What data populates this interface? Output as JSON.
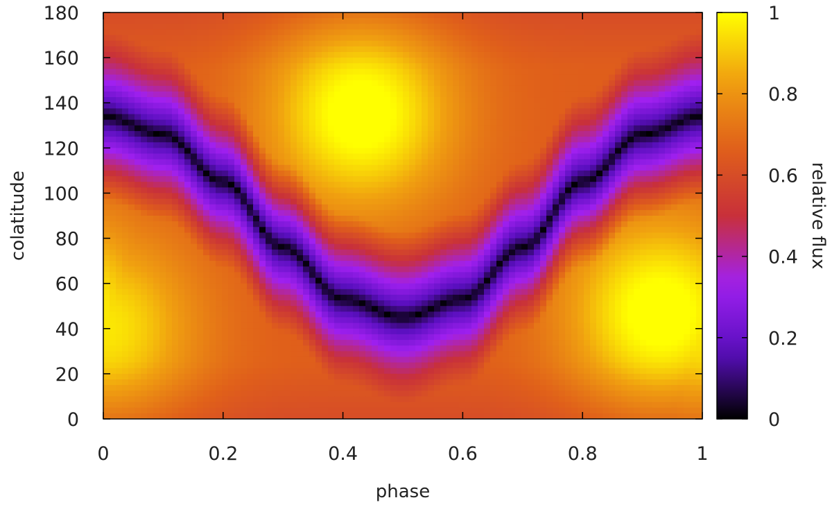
{
  "chart_data": {
    "type": "heatmap",
    "title": "",
    "xlabel": "phase",
    "ylabel": "colatitude",
    "colorbar_label": "relative flux",
    "xlim": [
      0,
      1
    ],
    "ylim": [
      0,
      180
    ],
    "clim": [
      0,
      1
    ],
    "x_ticks": [
      0,
      0.2,
      0.4,
      0.6,
      0.8,
      1
    ],
    "x_tick_labels": [
      "0",
      "0.2",
      "0.4",
      "0.6",
      "0.8",
      "1"
    ],
    "y_ticks": [
      0,
      20,
      40,
      60,
      80,
      100,
      120,
      140,
      160,
      180
    ],
    "y_tick_labels": [
      "0",
      "20",
      "40",
      "60",
      "80",
      "100",
      "120",
      "140",
      "160",
      "180"
    ],
    "colorbar_ticks": [
      0,
      0.2,
      0.4,
      0.6,
      0.8,
      1
    ],
    "colorbar_tick_labels": [
      "0",
      "0.2",
      "0.4",
      "0.6",
      "0.8",
      "1"
    ],
    "colormap": [
      "#000000",
      "#5a0fbf",
      "#a020f0",
      "#c8303a",
      "#e0601a",
      "#f0a010",
      "#ffff00"
    ],
    "minimum_flux_curve": {
      "phase": [
        0,
        0.1,
        0.2,
        0.3,
        0.4,
        0.5,
        0.6,
        0.7,
        0.8,
        0.9,
        1
      ],
      "colatitude": [
        134,
        126,
        105,
        76,
        53,
        45,
        53,
        76,
        105,
        126,
        134
      ]
    },
    "maxima": [
      {
        "phase": 0.43,
        "colatitude": 135,
        "flux": 1.0
      },
      {
        "phase": 0.93,
        "colatitude": 47,
        "flux": 1.0
      },
      {
        "phase": 0.0,
        "colatitude": 40,
        "flux": 0.92
      }
    ]
  }
}
